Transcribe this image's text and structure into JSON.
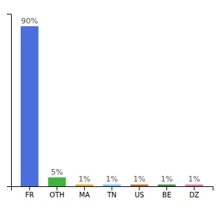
{
  "chart_data": {
    "type": "bar",
    "categories": [
      "FR",
      "OTH",
      "MA",
      "TN",
      "US",
      "BE",
      "DZ"
    ],
    "values": [
      90,
      5,
      1,
      1,
      1,
      1,
      1
    ],
    "value_labels": [
      "90%",
      "5%",
      "1%",
      "1%",
      "1%",
      "1%",
      "1%"
    ],
    "colors": [
      "#4a6fdc",
      "#3db53d",
      "#e8a020",
      "#6ec6e8",
      "#c86420",
      "#3a8c3a",
      "#e87090"
    ],
    "ylim": [
      0,
      97
    ],
    "data_labels": true,
    "tick_labels": "x",
    "grid": false
  }
}
